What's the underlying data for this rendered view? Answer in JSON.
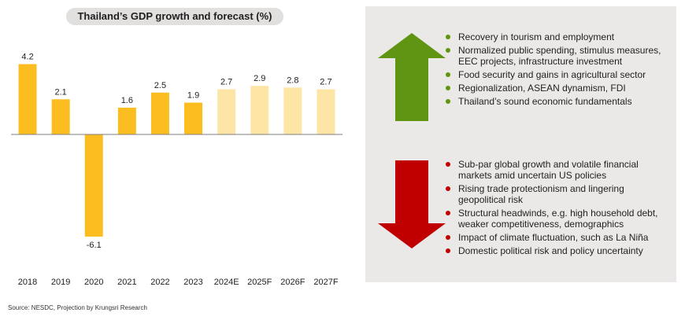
{
  "chart_data": {
    "type": "bar",
    "title": "Thailand’s GDP growth and forecast (%)",
    "categories": [
      "2018",
      "2019",
      "2020",
      "2021",
      "2022",
      "2023",
      "2024E",
      "2025F",
      "2026F",
      "2027F"
    ],
    "values": [
      4.2,
      2.1,
      -6.1,
      1.6,
      2.5,
      1.9,
      2.7,
      2.9,
      2.8,
      2.7
    ],
    "value_labels": [
      "4.2",
      "2.1",
      "-6.1",
      "1.6",
      "2.5",
      "1.9",
      "2.7",
      "2.9",
      "2.8",
      "2.7"
    ],
    "ylim": [
      -6.1,
      4.6
    ],
    "grid": false,
    "colors": {
      "actual": "#fbbd1f",
      "forecast": "#fde5a6",
      "baseline": "#7f7f7f"
    },
    "actual_count": 6
  },
  "source": "Source: NESDC, Projection by Krungsri Research",
  "upside": {
    "arrow_color": "#5f9513",
    "bullet_color": "#5f9513",
    "items": [
      "Recovery in tourism and employment",
      "Normalized public spending, stimulus measures, EEC projects, infrastructure investment",
      "Food security and gains in agricultural sector",
      "Regionalization, ASEAN dynamism, FDI",
      "Thailand’s sound economic fundamentals"
    ]
  },
  "downside": {
    "arrow_color": "#c00000",
    "bullet_color": "#c00000",
    "items": [
      "Sub-par global growth and volatile financial markets amid uncertain US policies",
      "Rising trade protectionism and lingering geopolitical risk",
      "Structural headwinds, e.g. high household debt, weaker competitiveness, demographics",
      "Impact of climate fluctuation, such as La Niña",
      "Domestic political risk and policy uncertainty"
    ]
  },
  "panel_color": "#ebe9e7"
}
